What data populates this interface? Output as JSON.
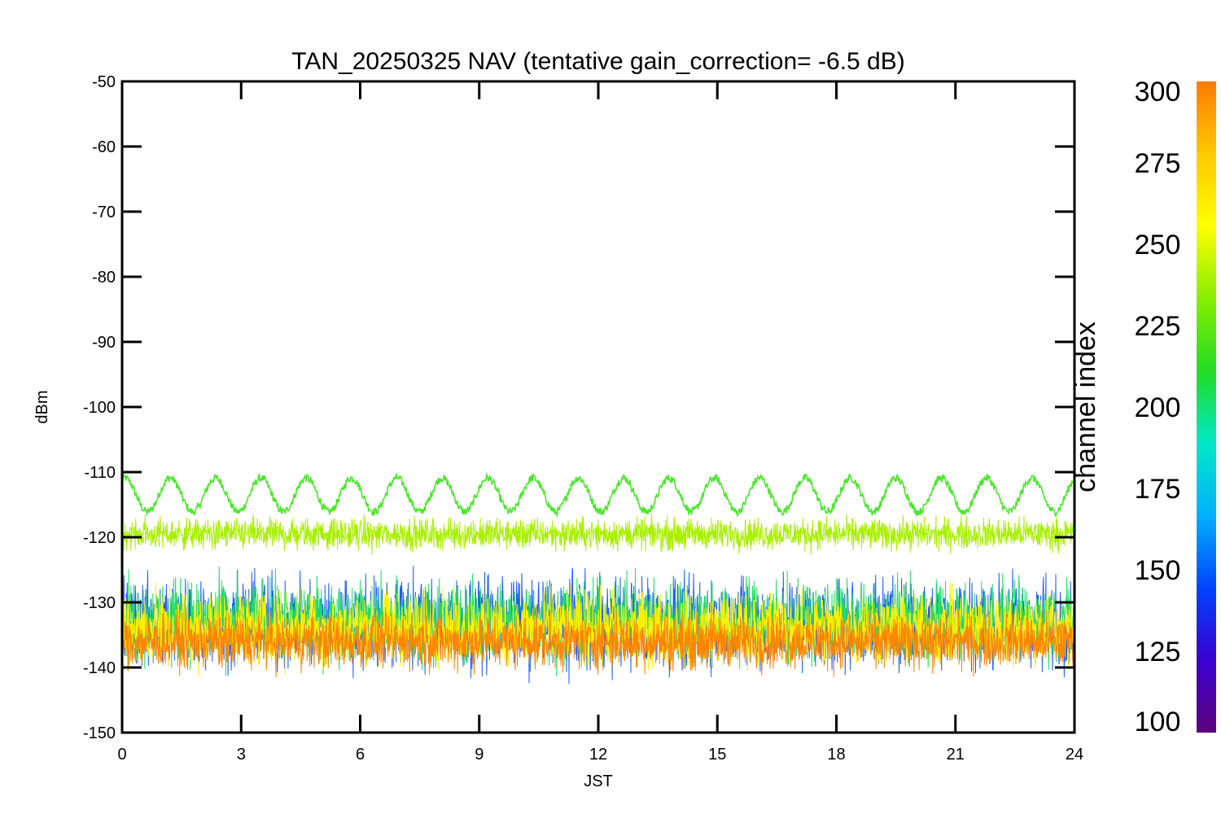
{
  "chart_data": {
    "type": "line",
    "title": "TAN_20250325 NAV (tentative gain_correction= -6.5 dB)",
    "xlabel": "JST",
    "ylabel": "dBm",
    "xlim": [
      0,
      24
    ],
    "ylim": [
      -150,
      -50
    ],
    "xticks": [
      0,
      3,
      6,
      9,
      12,
      15,
      18,
      21,
      24
    ],
    "yticks": [
      -50,
      -60,
      -70,
      -80,
      -90,
      -100,
      -110,
      -120,
      -130,
      -140,
      -150
    ],
    "grid": false,
    "series": [
      {
        "channel_index": 240,
        "color": "#4ae82a",
        "kind": "oscillation",
        "center": -113.5,
        "amplitude": 2.6,
        "periods": 21
      },
      {
        "channel_index": 262,
        "color": "#a8f000",
        "kind": "noise_band",
        "center": -119.5,
        "spread": 3.5
      },
      {
        "channel_index": 160,
        "color": "#1a5cff",
        "kind": "noise_band",
        "center": -133,
        "spread": 10
      },
      {
        "channel_index": 215,
        "color": "#22dd66",
        "kind": "noise_band",
        "center": -133,
        "spread": 9
      },
      {
        "channel_index": 278,
        "color": "#fff000",
        "kind": "noise_band",
        "center": -134,
        "spread": 8
      },
      {
        "channel_index": 292,
        "color": "#ff8400",
        "kind": "noise_band",
        "center": -136,
        "spread": 6
      }
    ],
    "colorbar": {
      "label": "channel index",
      "range": [
        100,
        300
      ],
      "ticks": [
        100,
        125,
        150,
        175,
        200,
        225,
        250,
        275,
        300
      ],
      "colors": [
        "#5a007a",
        "#3a00d0",
        "#0044ff",
        "#00b0ff",
        "#00e8c8",
        "#22dd22",
        "#88ee00",
        "#ffff00",
        "#ffc800",
        "#ff7a00"
      ]
    }
  }
}
